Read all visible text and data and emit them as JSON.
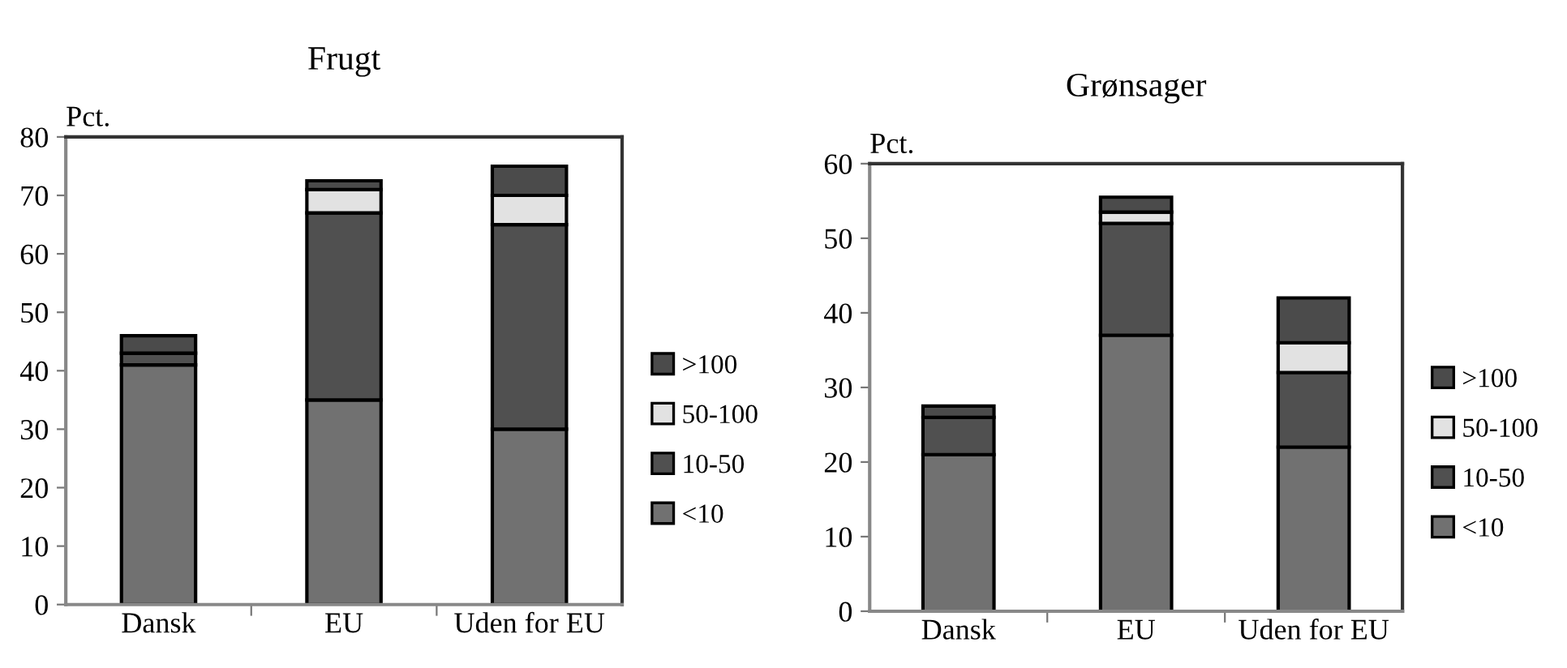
{
  "chart_data": [
    {
      "type": "bar",
      "title": "Frugt",
      "ylabel": "Pct.",
      "categories": [
        "Dansk",
        "EU",
        "Uden for EU"
      ],
      "stacked": true,
      "ylim": [
        0,
        80
      ],
      "yticks": [
        0,
        10,
        20,
        30,
        40,
        50,
        60,
        70,
        80
      ],
      "grid": false,
      "legend": "right",
      "series": [
        {
          "name": "<10",
          "color": "#717171",
          "values": [
            41,
            35,
            30
          ]
        },
        {
          "name": "10-50",
          "color": "#505050",
          "values": [
            2,
            32,
            35
          ]
        },
        {
          "name": "50-100",
          "color": "#e2e2e2",
          "values": [
            0,
            4,
            5
          ]
        },
        {
          "name": ">100",
          "color": "#4b4b4b",
          "values": [
            3,
            1.5,
            5
          ]
        }
      ]
    },
    {
      "type": "bar",
      "title": "Grønsager",
      "ylabel": "Pct.",
      "categories": [
        "Dansk",
        "EU",
        "Uden for EU"
      ],
      "stacked": true,
      "ylim": [
        0,
        60
      ],
      "yticks": [
        0,
        10,
        20,
        30,
        40,
        50,
        60
      ],
      "grid": false,
      "legend": "right",
      "series": [
        {
          "name": "<10",
          "color": "#717171",
          "values": [
            21,
            37,
            22
          ]
        },
        {
          "name": "10-50",
          "color": "#505050",
          "values": [
            5,
            15,
            10
          ]
        },
        {
          "name": "50-100",
          "color": "#e2e2e2",
          "values": [
            0,
            1.5,
            4
          ]
        },
        {
          "name": ">100",
          "color": "#4b4b4b",
          "values": [
            1.5,
            2,
            6
          ]
        }
      ]
    }
  ]
}
